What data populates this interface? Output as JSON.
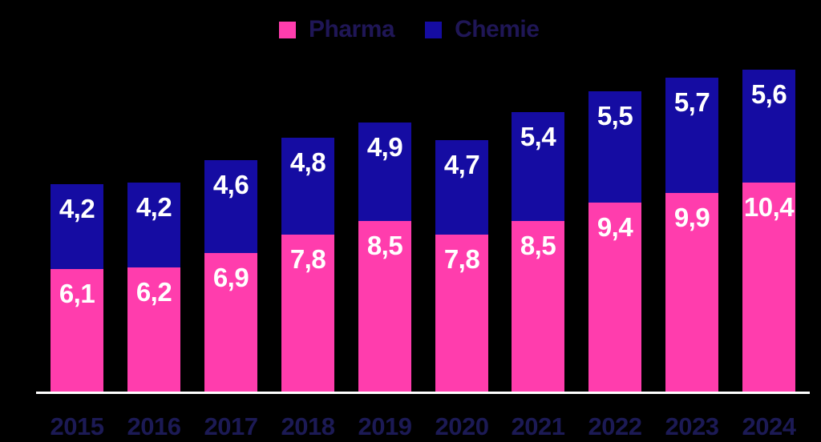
{
  "chart_data": {
    "type": "bar",
    "stacked": true,
    "title": "",
    "categories": [
      "2015",
      "2016",
      "2017",
      "2018",
      "2019",
      "2020",
      "2021",
      "2022",
      "2023",
      "2024"
    ],
    "series": [
      {
        "name": "Pharma",
        "color": "#FF3DAD",
        "values": [
          6.1,
          6.2,
          6.9,
          7.8,
          8.5,
          7.8,
          8.5,
          9.4,
          9.9,
          10.4
        ],
        "labels": [
          "6,1",
          "6,2",
          "6,9",
          "7,8",
          "8,5",
          "7,8",
          "8,5",
          "9,4",
          "9,9",
          "10,4"
        ]
      },
      {
        "name": "Chemie",
        "color": "#150CA2",
        "values": [
          4.2,
          4.2,
          4.6,
          4.8,
          4.9,
          4.7,
          5.4,
          5.5,
          5.7,
          5.6
        ],
        "labels": [
          "4,2",
          "4,2",
          "4,6",
          "4,8",
          "4,9",
          "4,7",
          "5,4",
          "5,5",
          "5,7",
          "5,6"
        ]
      }
    ],
    "xlabel": "",
    "ylabel": "",
    "ylim": [
      0,
      17
    ],
    "grid": false,
    "y_axis_visible": false,
    "legend_position": "top-center",
    "decimal_separator": ",",
    "colors": {
      "background": "#000000",
      "value_label": "#FFFFFF",
      "category_label": "#1C1A55",
      "legend_label": "#1F1656",
      "axis_line": "#FFFFFF"
    }
  }
}
